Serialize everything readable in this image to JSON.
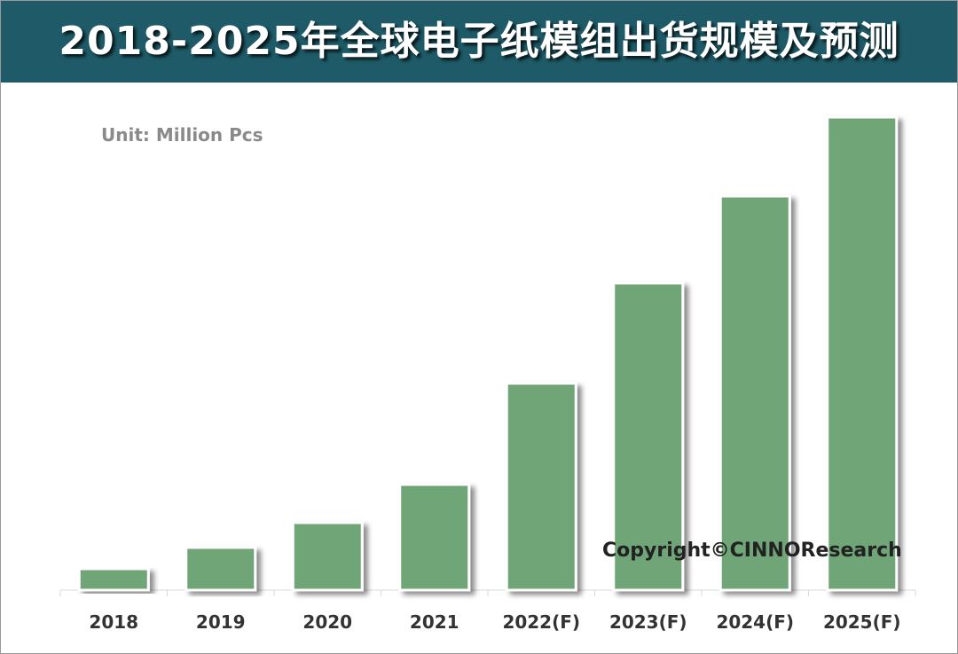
{
  "title": "2018-2025年全球电子纸模组出货规模及预测",
  "unit_label": "Unit: Million Pcs",
  "copyright": "Copyright©CINNOResearch",
  "colors": {
    "header_bg": "#1e5a67",
    "bar_fill": "#6fa577",
    "bar_border": "#ffffff",
    "text_dark": "#333333",
    "unit_text": "#8a8a8a"
  },
  "chart_data": {
    "type": "bar",
    "title": "2018-2025年全球电子纸模组出货规模及预测",
    "xlabel": "",
    "ylabel": "",
    "unit": "Million Pcs",
    "categories": [
      "2018",
      "2019",
      "2020",
      "2021",
      "2022(F)",
      "2023(F)",
      "2024(F)",
      "2025(F)"
    ],
    "values": [
      24,
      48,
      76,
      119,
      233,
      346,
      444,
      533
    ],
    "ylim": [
      0,
      560
    ],
    "grid": false,
    "legend": "none"
  }
}
